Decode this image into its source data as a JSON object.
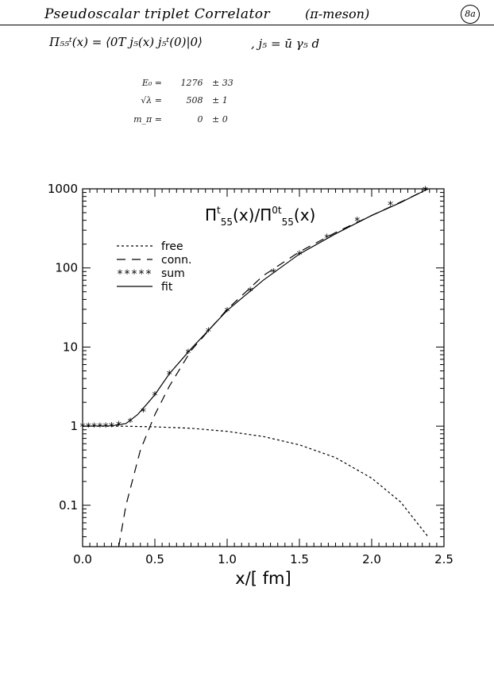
{
  "header": {
    "title": "Pseudoscalar triplet Correlator",
    "meson": "(π-meson)",
    "page_badge": "8a"
  },
  "formula": {
    "correlator": "Π₅₅ᵗ(x) = ⟨0T j₅(x) j₅ᵗ(0)|0⟩",
    "current": ",   j₅ = ū γ₅ d"
  },
  "params": [
    {
      "name": "E₀ =",
      "value": "1276",
      "err": "± 33"
    },
    {
      "name": "√λ =",
      "value": "508",
      "err": "± 1"
    },
    {
      "name": "m_π =",
      "value": "0",
      "err": "± 0"
    }
  ],
  "chart_data": {
    "type": "line",
    "title": "Π^t_55(x)/Π^0t_55(x)",
    "xlabel": "x/[ fm]",
    "ylabel": "",
    "xlim": [
      0.0,
      2.5
    ],
    "ylim": [
      0.03,
      1000
    ],
    "yscale": "log",
    "grid": false,
    "legend_position": "top-left",
    "x_ticks": [
      "0.0",
      "0.5",
      "1.0",
      "1.5",
      "2.0",
      "2.5"
    ],
    "y_ticks": [
      "0.1",
      "1",
      "10",
      "100",
      "1000"
    ],
    "series": [
      {
        "name": "free",
        "style": "dotted",
        "x": [
          0.0,
          0.25,
          0.5,
          0.75,
          1.0,
          1.25,
          1.5,
          1.75,
          2.0,
          2.2,
          2.39
        ],
        "y": [
          1.0,
          1.0,
          0.98,
          0.94,
          0.86,
          0.74,
          0.58,
          0.4,
          0.22,
          0.11,
          0.04
        ]
      },
      {
        "name": "conn.",
        "style": "dashed",
        "x": [
          0.25,
          0.3,
          0.4,
          0.5,
          0.6,
          0.75,
          1.0,
          1.25,
          1.5,
          1.75,
          2.0,
          2.2,
          2.39
        ],
        "y": [
          0.03,
          0.1,
          0.5,
          1.4,
          3.2,
          9.0,
          30,
          80,
          160,
          280,
          460,
          680,
          1000
        ]
      },
      {
        "name": "sum",
        "style": "stars",
        "x": [
          0.0,
          0.04,
          0.08,
          0.12,
          0.16,
          0.2,
          0.25,
          0.33,
          0.42,
          0.5,
          0.6,
          0.73,
          0.87,
          1.0,
          1.16,
          1.32,
          1.5,
          1.69,
          1.9,
          2.13,
          2.37
        ],
        "y": [
          1.0,
          1.0,
          1.0,
          1.0,
          1.0,
          1.02,
          1.05,
          1.15,
          1.55,
          2.5,
          4.6,
          8.6,
          16,
          29,
          52,
          90,
          150,
          245,
          400,
          640,
          980
        ]
      },
      {
        "name": "fit",
        "style": "solid",
        "x": [
          0.0,
          0.2,
          0.3,
          0.38,
          0.45,
          0.5,
          0.6,
          0.75,
          1.0,
          1.25,
          1.5,
          1.75,
          2.0,
          2.2,
          2.39
        ],
        "y": [
          1.0,
          1.01,
          1.08,
          1.4,
          1.95,
          2.5,
          4.6,
          9.5,
          29,
          70,
          150,
          270,
          460,
          670,
          1000
        ]
      }
    ]
  }
}
